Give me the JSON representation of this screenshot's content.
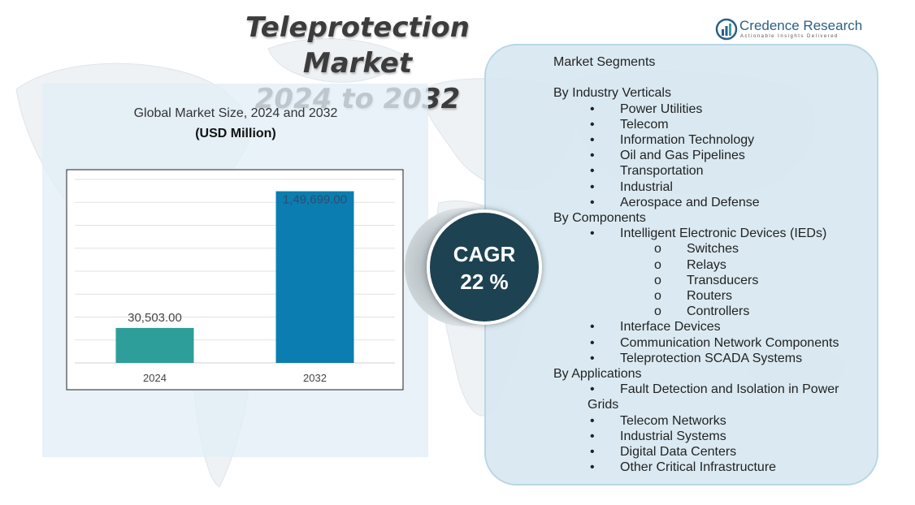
{
  "title": {
    "line1": "Teleprotection Market",
    "line2": "2024 to 2032"
  },
  "brand": {
    "name": "Credence Research",
    "tagline": "Actionable Insights Delivered"
  },
  "chart_data": {
    "type": "bar",
    "title": "Global Market Size, 2024 and 2032",
    "unit": "(USD Million)",
    "categories": [
      "2024",
      "2032"
    ],
    "values": [
      30503.0,
      149699.0
    ],
    "value_labels": [
      "30,503.00",
      "1,49,699.00"
    ],
    "ylim": [
      0,
      160000
    ],
    "grid": true,
    "colors": [
      "#2e9e9a",
      "#0b7db0"
    ]
  },
  "cagr": {
    "label": "CAGR",
    "value": "22 %"
  },
  "segments": {
    "header": "Market Segments",
    "industry_title": "By Industry Verticals",
    "industry": [
      "Power Utilities",
      "Telecom",
      "Information Technology",
      "Oil and Gas Pipelines",
      "Transportation",
      "Industrial",
      "Aerospace and Defense"
    ],
    "components_title": "By Components",
    "components_ied": "Intelligent Electronic Devices (IEDs)",
    "ied_sub": [
      "Switches",
      "Relays",
      "Transducers",
      "Routers",
      "Controllers"
    ],
    "components_other": [
      "Interface Devices",
      "Communication Network Components",
      "Teleprotection SCADA Systems"
    ],
    "applications_title": "By Applications",
    "app_fault_line1": "Fault Detection and Isolation in Power",
    "app_fault_line2": "Grids",
    "applications": [
      "Telecom Networks",
      "Industrial Systems",
      "Digital Data Centers",
      "Other Critical Infrastructure"
    ]
  }
}
